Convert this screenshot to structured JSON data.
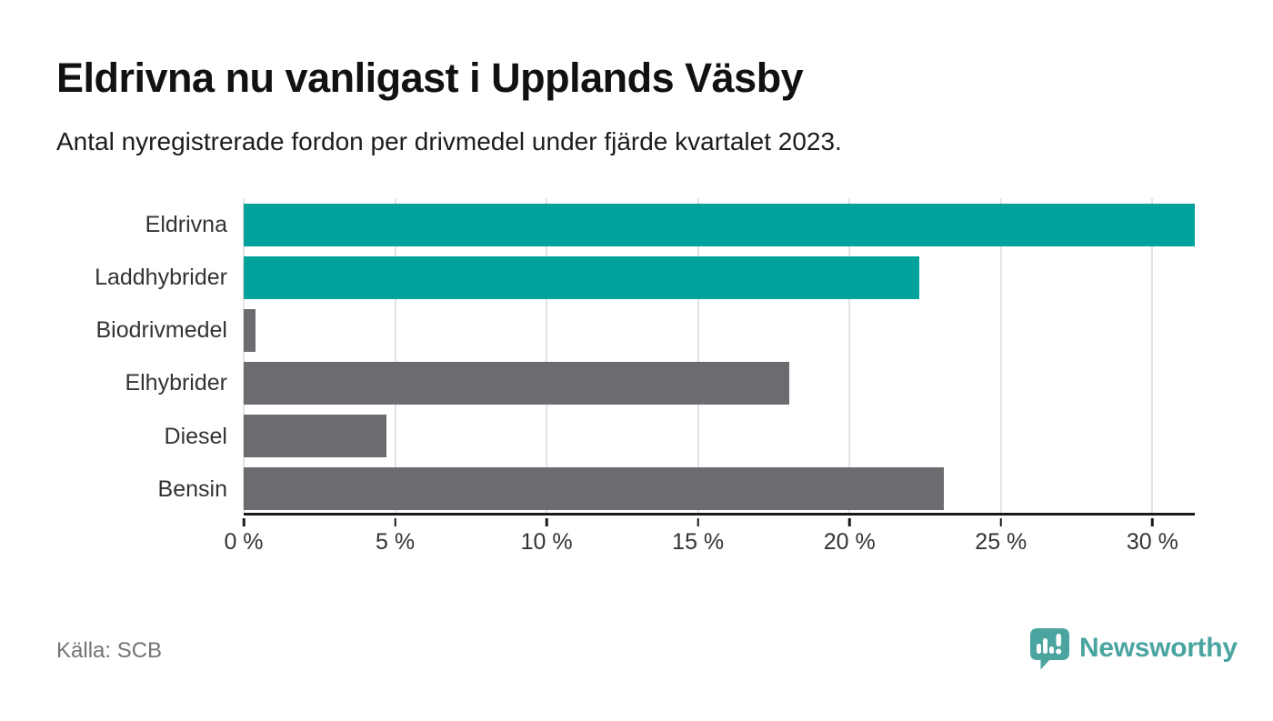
{
  "header": {
    "title": "Eldrivna nu vanligast i Upplands Väsby",
    "subtitle": "Antal nyregistrerade fordon per drivmedel under fjärde kvartalet 2023."
  },
  "footer": {
    "source": "Källa: SCB",
    "brand": "Newsworthy"
  },
  "colors": {
    "highlight": "#00A39B",
    "default": "#6E6B70",
    "axis": "#1A1A1A",
    "grid": "#E3E3E3",
    "tick": "#1A1A1A",
    "logo": "#4AA5A1"
  },
  "chart_data": {
    "type": "bar",
    "orientation": "horizontal",
    "title": "Eldrivna nu vanligast i Upplands Väsby",
    "subtitle": "Antal nyregistrerade fordon per drivmedel under fjärde kvartalet 2023.",
    "source": "Källa: SCB",
    "categories": [
      "Eldrivna",
      "Laddhybrider",
      "Biodrivmedel",
      "Elhybrider",
      "Diesel",
      "Bensin"
    ],
    "values": [
      31.4,
      22.3,
      0.4,
      18.0,
      4.7,
      23.1
    ],
    "unit": "%",
    "bar_colors": [
      "highlight",
      "highlight",
      "default",
      "default",
      "default",
      "default"
    ],
    "xlim": [
      0,
      31.4
    ],
    "x_ticks": [
      0,
      5,
      10,
      15,
      20,
      25,
      30
    ],
    "x_tick_labels": [
      "0 %",
      "5 %",
      "10 %",
      "15 %",
      "20 %",
      "25 %",
      "30 %"
    ],
    "grid": true,
    "legend": false
  }
}
